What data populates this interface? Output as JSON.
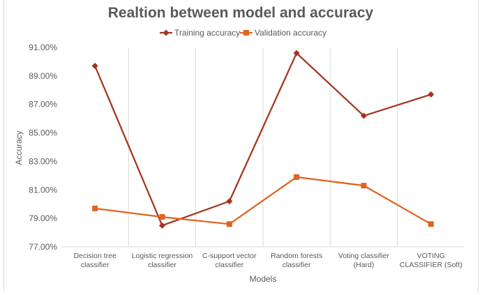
{
  "chart_data": {
    "type": "line",
    "title": "Realtion between model and accuracy",
    "xlabel": "Models",
    "ylabel": "Accuracy",
    "categories": [
      [
        "Decision tree",
        "classifier"
      ],
      [
        "Logistic regression",
        "classifier"
      ],
      [
        "C-support vector",
        "classifier"
      ],
      [
        "Random forests",
        "classifier"
      ],
      [
        "Voting classifier",
        "(Hard)"
      ],
      [
        "VOTING",
        "CLASSIFIER (Soft)"
      ]
    ],
    "ylim": [
      77.0,
      91.0
    ],
    "yticks": [
      "77.00%",
      "79.00%",
      "81.00%",
      "83.00%",
      "85.00%",
      "87.00%",
      "89.00%",
      "91.00%"
    ],
    "ytick_values": [
      77,
      79,
      81,
      83,
      85,
      87,
      89,
      91
    ],
    "grid": "vertical",
    "legend": "top",
    "series": [
      {
        "name": "Training accuracy",
        "marker": "diamond",
        "color": "#A5341E",
        "values": [
          89.7,
          78.5,
          80.2,
          90.6,
          86.2,
          87.7
        ]
      },
      {
        "name": "Validation accuracy",
        "marker": "square",
        "color": "#E0631F",
        "values": [
          79.7,
          79.1,
          78.6,
          81.9,
          81.3,
          78.6
        ]
      }
    ]
  }
}
